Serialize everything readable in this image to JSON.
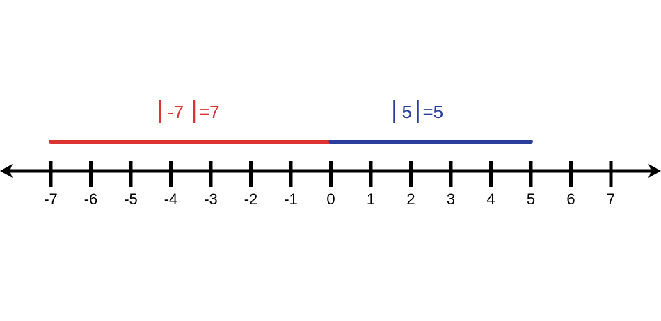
{
  "number_line": {
    "min": -7,
    "max": 7,
    "ticks": [
      "-7",
      "-6",
      "-5",
      "-4",
      "-3",
      "-2",
      "-1",
      "0",
      "1",
      "2",
      "3",
      "4",
      "5",
      "6",
      "7"
    ],
    "axis_color": "#000000"
  },
  "segments": [
    {
      "from": -7,
      "to": 0,
      "color": "#dc3232",
      "label": {
        "bar_left": "|",
        "inner": "-7",
        "bar_right": "|",
        "result": "=7"
      }
    },
    {
      "from": 0,
      "to": 5,
      "color": "#2a3f9c",
      "label": {
        "bar_left": "|",
        "inner": "5",
        "bar_right": "|",
        "result": "=5"
      }
    }
  ]
}
